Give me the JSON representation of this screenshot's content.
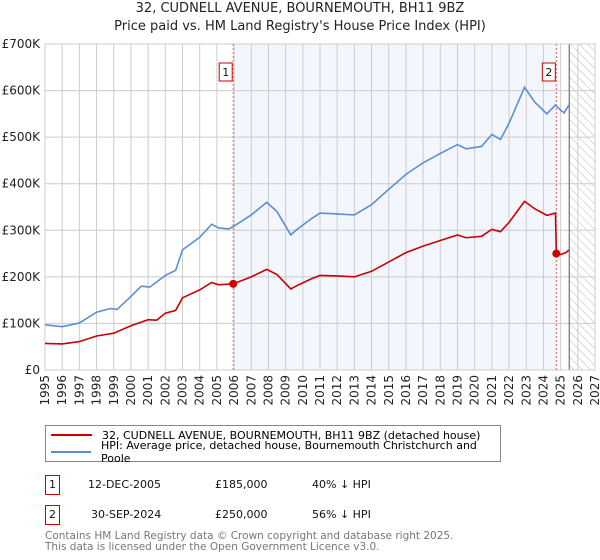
{
  "chart_data": {
    "type": "line",
    "title": "32, CUDNELL AVENUE, BOURNEMOUTH, BH11 9BZ",
    "subtitle": "Price paid vs. HM Land Registry's House Price Index (HPI)",
    "xlim": [
      1995,
      2027
    ],
    "ylim": [
      0,
      700000
    ],
    "x_ticks": [
      "1995",
      "1996",
      "1997",
      "1998",
      "1999",
      "2000",
      "2001",
      "2002",
      "2003",
      "2004",
      "2005",
      "2006",
      "2007",
      "2008",
      "2009",
      "2010",
      "2011",
      "2012",
      "2013",
      "2014",
      "2015",
      "2016",
      "2017",
      "2018",
      "2019",
      "2020",
      "2021",
      "2022",
      "2023",
      "2024",
      "2025",
      "2026",
      "2027"
    ],
    "y_ticks": [
      {
        "v": 0,
        "label": "£0"
      },
      {
        "v": 100000,
        "label": "£100K"
      },
      {
        "v": 200000,
        "label": "£200K"
      },
      {
        "v": 300000,
        "label": "£300K"
      },
      {
        "v": 400000,
        "label": "£400K"
      },
      {
        "v": 500000,
        "label": "£500K"
      },
      {
        "v": 600000,
        "label": "£600K"
      },
      {
        "v": 700000,
        "label": "£700K"
      }
    ],
    "grid": true,
    "series": [
      {
        "name": "32, CUDNELL AVENUE, BOURNEMOUTH, BH11 9BZ (detached house)",
        "color": "#cc0000",
        "points": [
          [
            1995,
            57000
          ],
          [
            1996,
            56000
          ],
          [
            1997,
            61000
          ],
          [
            1998,
            73000
          ],
          [
            1999,
            79000
          ],
          [
            2000,
            95000
          ],
          [
            2001,
            108000
          ],
          [
            2001.5,
            107000
          ],
          [
            2002,
            122000
          ],
          [
            2002.6,
            128000
          ],
          [
            2003,
            155000
          ],
          [
            2004,
            172000
          ],
          [
            2004.7,
            188000
          ],
          [
            2005.1,
            183000
          ],
          [
            2005.95,
            185000
          ],
          [
            2007,
            200000
          ],
          [
            2007.9,
            216000
          ],
          [
            2008.5,
            205000
          ],
          [
            2009.3,
            174000
          ],
          [
            2009.6,
            180000
          ],
          [
            2010.5,
            196000
          ],
          [
            2011,
            203000
          ],
          [
            2012,
            202000
          ],
          [
            2013,
            200000
          ],
          [
            2014,
            212000
          ],
          [
            2015,
            232000
          ],
          [
            2016,
            252000
          ],
          [
            2017,
            266000
          ],
          [
            2018,
            278000
          ],
          [
            2019,
            290000
          ],
          [
            2019.5,
            284000
          ],
          [
            2020.4,
            287000
          ],
          [
            2021,
            302000
          ],
          [
            2021.5,
            297000
          ],
          [
            2022,
            317000
          ],
          [
            2022.9,
            362000
          ],
          [
            2023.5,
            346000
          ],
          [
            2024.2,
            332000
          ],
          [
            2024.7,
            337000
          ],
          [
            2024.75,
            250000
          ],
          [
            2025,
            248000
          ],
          [
            2025.3,
            252000
          ],
          [
            2025.5,
            258000
          ]
        ]
      },
      {
        "name": "HPI: Average price, detached house, Bournemouth Christchurch and Poole",
        "color": "#5b8fd4",
        "points": [
          [
            1995,
            97000
          ],
          [
            1996,
            93000
          ],
          [
            1997,
            101000
          ],
          [
            1998,
            124000
          ],
          [
            1998.8,
            132000
          ],
          [
            1999.2,
            130000
          ],
          [
            2000,
            158000
          ],
          [
            2000.6,
            180000
          ],
          [
            2001.1,
            178000
          ],
          [
            2002,
            203000
          ],
          [
            2002.6,
            214000
          ],
          [
            2003,
            258000
          ],
          [
            2004,
            285000
          ],
          [
            2004.7,
            313000
          ],
          [
            2005.1,
            305000
          ],
          [
            2005.7,
            303000
          ],
          [
            2005.95,
            308000
          ],
          [
            2007,
            333000
          ],
          [
            2007.9,
            360000
          ],
          [
            2008.5,
            340000
          ],
          [
            2009.3,
            290000
          ],
          [
            2009.6,
            300000
          ],
          [
            2010.5,
            325000
          ],
          [
            2011,
            337000
          ],
          [
            2012,
            335000
          ],
          [
            2013,
            333000
          ],
          [
            2014,
            355000
          ],
          [
            2015,
            388000
          ],
          [
            2016,
            420000
          ],
          [
            2017,
            445000
          ],
          [
            2018,
            465000
          ],
          [
            2019,
            484000
          ],
          [
            2019.5,
            475000
          ],
          [
            2020.4,
            480000
          ],
          [
            2021,
            506000
          ],
          [
            2021.5,
            495000
          ],
          [
            2022,
            530000
          ],
          [
            2022.9,
            607000
          ],
          [
            2023.5,
            575000
          ],
          [
            2024.2,
            550000
          ],
          [
            2024.7,
            569000
          ],
          [
            2025,
            558000
          ],
          [
            2025.2,
            552000
          ],
          [
            2025.5,
            570000
          ]
        ]
      }
    ],
    "annotations": [
      {
        "label": "1",
        "x": 2005.95,
        "y": 185000
      },
      {
        "label": "2",
        "x": 2024.75,
        "y": 250000
      }
    ],
    "shaded_between_sales": [
      2005.95,
      2024.75
    ],
    "forecast_hatched_from": 2025.5,
    "legend_position": "below"
  },
  "legend": [
    {
      "label": "32, CUDNELL AVENUE, BOURNEMOUTH, BH11 9BZ (detached house)",
      "color": "#cc0000"
    },
    {
      "label": "HPI: Average price, detached house, Bournemouth Christchurch and Poole",
      "color": "#5b8fd4"
    }
  ],
  "sales": [
    {
      "num": "1",
      "date": "12-DEC-2005",
      "price": "£185,000",
      "delta": "40% ↓ HPI"
    },
    {
      "num": "2",
      "date": "30-SEP-2024",
      "price": "£250,000",
      "delta": "56% ↓ HPI"
    }
  ],
  "footer": {
    "line1": "Contains HM Land Registry data © Crown copyright and database right 2025.",
    "line2": "This data is licensed under the Open Government Licence v3.0."
  }
}
